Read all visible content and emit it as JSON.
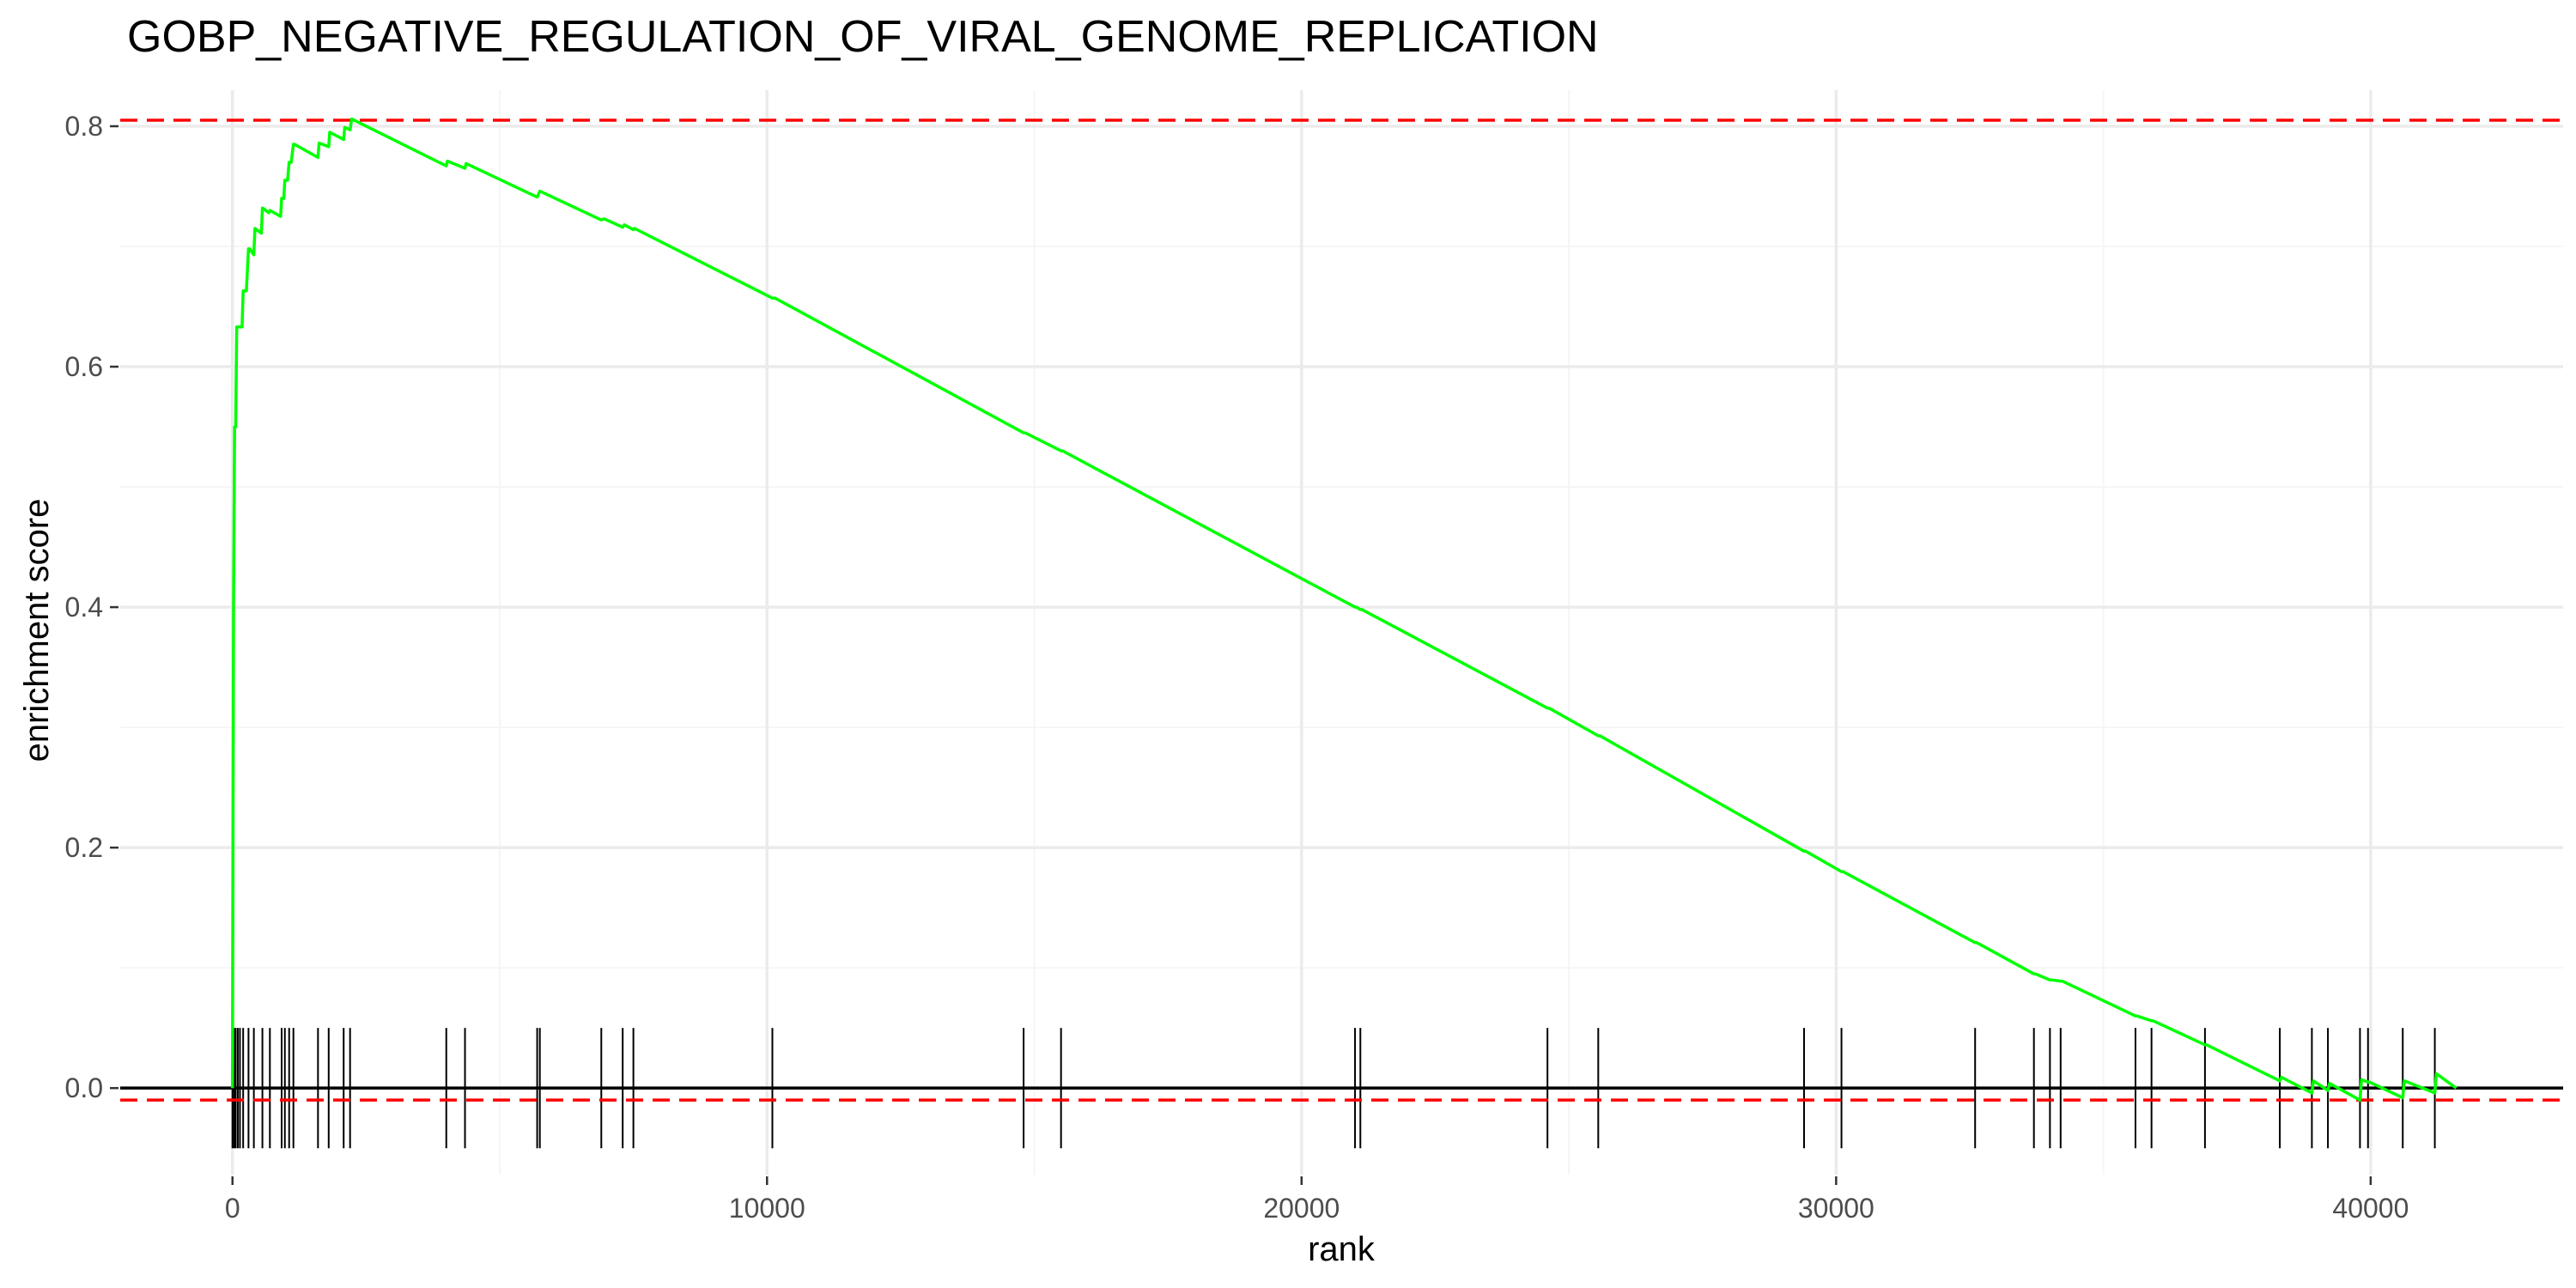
{
  "chart_data": {
    "type": "line",
    "title": "GOBP_NEGATIVE_REGULATION_OF_VIRAL_GENOME_REPLICATION",
    "xlabel": "rank",
    "ylabel": "enrichment score",
    "xlim": [
      -2100,
      43600
    ],
    "ylim": [
      -0.072,
      0.83
    ],
    "xticks": [
      0,
      10000,
      20000,
      30000,
      40000
    ],
    "xtick_labels": [
      "0",
      "10000",
      "20000",
      "30000",
      "40000"
    ],
    "yticks": [
      0.0,
      0.2,
      0.4,
      0.6,
      0.8
    ],
    "ytick_labels": [
      "0.0",
      "0.2",
      "0.4",
      "0.6",
      "0.8"
    ],
    "grid": true,
    "legend": "none",
    "colors": {
      "curve": "#00ff00",
      "threshold": "#ff0000",
      "baseline": "#000000",
      "hits": "#000000"
    },
    "threshold_lines": [
      0.805,
      -0.01
    ],
    "series": [
      {
        "x": [
          0,
          20,
          40,
          60,
          80,
          100,
          140,
          180,
          200,
          260,
          300,
          320,
          400,
          420,
          540,
          560,
          680,
          700,
          900,
          920,
          960,
          980,
          1030,
          1060,
          1100,
          1140,
          1160,
          1600,
          1620,
          1800,
          1820,
          2080,
          2100,
          2200,
          2230,
          4000,
          4020,
          4350,
          4370,
          5700,
          5750,
          6900,
          6950,
          7300,
          7330,
          7500,
          7520,
          10100,
          10150,
          14800,
          14830,
          15500,
          15530,
          21000,
          21030,
          21100,
          21130,
          24600,
          24630,
          25550,
          25580,
          29400,
          29430,
          30100,
          30130,
          32600,
          32630,
          33700,
          33730,
          34000,
          34030,
          34200,
          34230,
          35600,
          35630,
          35900,
          35930,
          36900,
          36930,
          38300,
          38330,
          38900,
          38930,
          39200,
          39230,
          39800,
          39830,
          39950,
          39980,
          40600,
          40630,
          41200,
          41230,
          41600
        ],
        "y": [
          0.0,
          0.4,
          0.55,
          0.55,
          0.633,
          0.633,
          0.633,
          0.633,
          0.663,
          0.663,
          0.698,
          0.698,
          0.693,
          0.715,
          0.711,
          0.732,
          0.728,
          0.73,
          0.725,
          0.74,
          0.74,
          0.755,
          0.755,
          0.77,
          0.77,
          0.785,
          0.785,
          0.774,
          0.786,
          0.783,
          0.795,
          0.789,
          0.799,
          0.797,
          0.806,
          0.767,
          0.771,
          0.765,
          0.769,
          0.741,
          0.746,
          0.722,
          0.723,
          0.716,
          0.718,
          0.714,
          0.715,
          0.657,
          0.657,
          0.545,
          0.545,
          0.53,
          0.53,
          0.4,
          0.4,
          0.398,
          0.398,
          0.316,
          0.316,
          0.293,
          0.293,
          0.197,
          0.197,
          0.18,
          0.18,
          0.121,
          0.121,
          0.095,
          0.095,
          0.09,
          0.09,
          0.089,
          0.089,
          0.06,
          0.06,
          0.056,
          0.056,
          0.036,
          0.036,
          0.006,
          0.009,
          -0.004,
          0.006,
          -0.002,
          0.004,
          -0.01,
          0.007,
          0.005,
          0.005,
          -0.008,
          0.006,
          -0.004,
          0.012,
          0.0
        ]
      }
    ],
    "hits": [
      0,
      30,
      60,
      100,
      140,
      200,
      300,
      400,
      560,
      700,
      920,
      980,
      1060,
      1140,
      1600,
      1800,
      2080,
      2200,
      4000,
      4350,
      5700,
      5750,
      6900,
      7300,
      7500,
      10100,
      14800,
      15500,
      21000,
      21100,
      24600,
      25550,
      29400,
      30100,
      32600,
      33700,
      34000,
      34200,
      35600,
      35900,
      36900,
      38300,
      38900,
      39200,
      39800,
      39950,
      40600,
      41200
    ],
    "hit_range": [
      -0.05,
      0.05
    ]
  }
}
